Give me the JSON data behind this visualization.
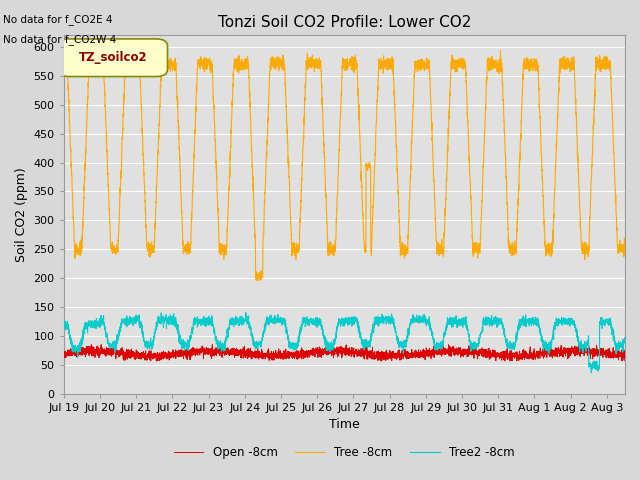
{
  "title": "Tonzi Soil CO2 Profile: Lower CO2",
  "ylabel": "Soil CO2 (ppm)",
  "xlabel": "Time",
  "xlim_days": [
    0,
    15.5
  ],
  "ylim": [
    0,
    620
  ],
  "yticks": [
    0,
    50,
    100,
    150,
    200,
    250,
    300,
    350,
    400,
    450,
    500,
    550,
    600
  ],
  "xtick_labels": [
    "Jul 19",
    "Jul 20",
    "Jul 21",
    "Jul 22",
    "Jul 23",
    "Jul 24",
    "Jul 25",
    "Jul 26",
    "Jul 27",
    "Jul 28",
    "Jul 29",
    "Jul 30",
    "Jul 31",
    "Aug 1",
    "Aug 2",
    "Aug 3"
  ],
  "xtick_positions": [
    0,
    1,
    2,
    3,
    4,
    5,
    6,
    7,
    8,
    9,
    10,
    11,
    12,
    13,
    14,
    15
  ],
  "no_data_text1": "No data for f_CO2E 4",
  "no_data_text2": "No data for f_CO2W 4",
  "legend_box_label": "TZ_soilco2",
  "legend_entries": [
    "Open -8cm",
    "Tree -8cm",
    "Tree2 -8cm"
  ],
  "line_colors": [
    "#dd0000",
    "#ffaa00",
    "#00cccc"
  ],
  "background_color": "#d8d8d8",
  "plot_bg_color": "#e0e0e0",
  "title_fontsize": 11,
  "axis_fontsize": 9,
  "tick_fontsize": 8
}
